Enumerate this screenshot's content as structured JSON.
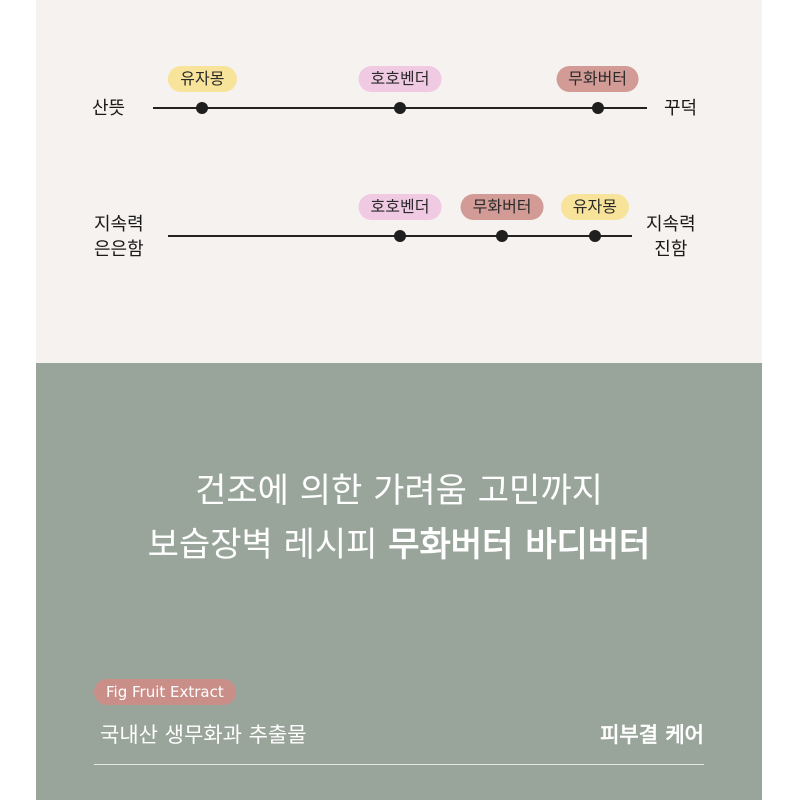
{
  "colors": {
    "top_background": "#f6f2ef",
    "bottom_background": "#99a59b",
    "yuzu": "#f8e39a",
    "lavender": "#f0c9e3",
    "fig": "#c98e88"
  },
  "scale_texture": {
    "left_label": "산뜻",
    "right_label": "꾸덕",
    "markers": [
      {
        "label": "유자몽",
        "color": "#f8e39a",
        "level": 0.1
      },
      {
        "label": "호호벤더",
        "color": "#f0c9e3",
        "level": 0.5
      },
      {
        "label": "무화버터",
        "color": "#d29b96",
        "level": 0.9
      }
    ]
  },
  "scale_scent": {
    "left_label_line1": "지속력",
    "left_label_line2": "은은함",
    "right_label_line1": "지속력",
    "right_label_line2": "진함",
    "markers": [
      {
        "label": "호호벤더",
        "color": "#f0c9e3",
        "level": 0.5
      },
      {
        "label": "무화버터",
        "color": "#d29b96",
        "level": 0.72
      },
      {
        "label": "유자몽",
        "color": "#f8e39a",
        "level": 0.92
      }
    ]
  },
  "headline": {
    "line1": "건조에 의한 가려움 고민까지",
    "line2_regular": "보습장벽 레시피 ",
    "line2_bold": "무화버터 바디버터"
  },
  "ingredient": {
    "tag": "Fig Fruit Extract",
    "description": "국내산 생무화과 추출물",
    "benefit": "피부결 케어"
  }
}
